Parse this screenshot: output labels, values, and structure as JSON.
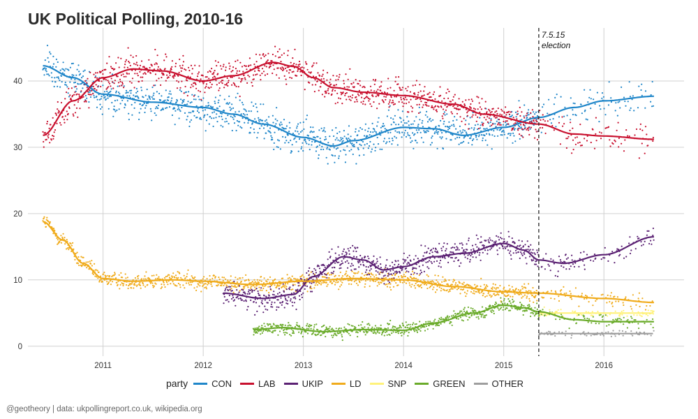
{
  "title": "UK Political Polling, 2010-16",
  "caption": "@geotheory | data: ukpollingreport.co.uk, wikipedia.org",
  "legend": {
    "title": "party",
    "items": [
      {
        "label": "CON",
        "color": "#1f86c9"
      },
      {
        "label": "LAB",
        "color": "#c8102e"
      },
      {
        "label": "UKIP",
        "color": "#5b2173"
      },
      {
        "label": "LD",
        "color": "#f0ab1b"
      },
      {
        "label": "SNP",
        "color": "#fff27a"
      },
      {
        "label": "GREEN",
        "color": "#6aab2a"
      },
      {
        "label": "OTHER",
        "color": "#9e9e9e"
      }
    ]
  },
  "chart_data": {
    "type": "scatter",
    "xlim": [
      2010.25,
      2016.8
    ],
    "ylim": [
      -1.5,
      48
    ],
    "xticks": [
      2011,
      2012,
      2013,
      2014,
      2015,
      2016
    ],
    "xtick_labels": [
      "2011",
      "2012",
      "2013",
      "2014",
      "2015",
      "2016"
    ],
    "yticks": [
      0,
      10,
      20,
      30,
      40
    ],
    "ytick_labels": [
      "0",
      "10",
      "20",
      "30",
      "40"
    ],
    "grid": true,
    "legend_position": "bottom",
    "annotation": {
      "x": 2015.35,
      "lines": [
        "7.5.15",
        "election"
      ]
    },
    "series": [
      {
        "name": "CON",
        "color": "#1f86c9",
        "start": 2010.4,
        "end": 2016.5,
        "noise": 2.2,
        "trend": [
          [
            2010.4,
            42.3
          ],
          [
            2010.7,
            40.5
          ],
          [
            2011.0,
            38.0
          ],
          [
            2011.5,
            36.8
          ],
          [
            2012.0,
            36.0
          ],
          [
            2012.3,
            35.0
          ],
          [
            2012.6,
            33.5
          ],
          [
            2013.0,
            31.5
          ],
          [
            2013.3,
            30.2
          ],
          [
            2013.5,
            31.0
          ],
          [
            2014.0,
            33.0
          ],
          [
            2014.3,
            32.8
          ],
          [
            2014.6,
            31.8
          ],
          [
            2015.0,
            33.0
          ],
          [
            2015.35,
            34.5
          ],
          [
            2015.7,
            36.0
          ],
          [
            2016.0,
            37.0
          ],
          [
            2016.5,
            37.7
          ]
        ]
      },
      {
        "name": "LAB",
        "color": "#c8102e",
        "start": 2010.4,
        "end": 2016.5,
        "noise": 2.0,
        "trend": [
          [
            2010.4,
            31.8
          ],
          [
            2010.7,
            37.0
          ],
          [
            2011.0,
            40.5
          ],
          [
            2011.3,
            41.8
          ],
          [
            2011.6,
            41.5
          ],
          [
            2012.0,
            40.0
          ],
          [
            2012.3,
            40.8
          ],
          [
            2012.7,
            42.8
          ],
          [
            2012.9,
            42.2
          ],
          [
            2013.1,
            40.5
          ],
          [
            2013.3,
            39.0
          ],
          [
            2013.6,
            38.3
          ],
          [
            2014.0,
            37.8
          ],
          [
            2014.5,
            36.5
          ],
          [
            2014.8,
            35.0
          ],
          [
            2015.35,
            33.5
          ],
          [
            2015.7,
            32.0
          ],
          [
            2016.0,
            31.7
          ],
          [
            2016.5,
            31.2
          ]
        ]
      },
      {
        "name": "UKIP",
        "color": "#5b2173",
        "start": 2012.2,
        "end": 2016.5,
        "noise": 1.5,
        "trend": [
          [
            2012.2,
            8.0
          ],
          [
            2012.6,
            7.2
          ],
          [
            2012.9,
            7.8
          ],
          [
            2013.1,
            10.5
          ],
          [
            2013.4,
            13.5
          ],
          [
            2013.6,
            13.0
          ],
          [
            2013.8,
            11.5
          ],
          [
            2014.0,
            12.0
          ],
          [
            2014.3,
            13.5
          ],
          [
            2014.6,
            14.0
          ],
          [
            2015.0,
            15.5
          ],
          [
            2015.2,
            14.5
          ],
          [
            2015.35,
            13.0
          ],
          [
            2015.6,
            12.5
          ],
          [
            2016.0,
            13.8
          ],
          [
            2016.5,
            16.5
          ]
        ]
      },
      {
        "name": "LD",
        "color": "#f0ab1b",
        "start": 2010.4,
        "end": 2016.5,
        "noise": 1.0,
        "trend": [
          [
            2010.4,
            18.8
          ],
          [
            2010.6,
            16.0
          ],
          [
            2010.8,
            12.5
          ],
          [
            2011.0,
            10.2
          ],
          [
            2011.3,
            9.8
          ],
          [
            2011.7,
            10.0
          ],
          [
            2012.0,
            9.8
          ],
          [
            2012.5,
            9.3
          ],
          [
            2013.0,
            9.8
          ],
          [
            2013.5,
            10.2
          ],
          [
            2014.0,
            10.0
          ],
          [
            2014.5,
            9.0
          ],
          [
            2015.0,
            8.2
          ],
          [
            2015.35,
            8.0
          ],
          [
            2016.0,
            7.2
          ],
          [
            2016.5,
            6.6
          ]
        ]
      },
      {
        "name": "SNP",
        "color": "#fff27a",
        "start": 2015.35,
        "end": 2016.5,
        "noise": 0.5,
        "trend": [
          [
            2015.35,
            5.0
          ],
          [
            2016.5,
            5.0
          ]
        ]
      },
      {
        "name": "GREEN",
        "color": "#6aab2a",
        "start": 2012.5,
        "end": 2016.5,
        "noise": 0.8,
        "trend": [
          [
            2012.5,
            2.5
          ],
          [
            2012.8,
            2.8
          ],
          [
            2013.2,
            2.2
          ],
          [
            2013.6,
            2.5
          ],
          [
            2014.0,
            2.4
          ],
          [
            2014.3,
            3.5
          ],
          [
            2014.7,
            5.0
          ],
          [
            2015.0,
            6.2
          ],
          [
            2015.2,
            5.8
          ],
          [
            2015.35,
            5.2
          ],
          [
            2015.7,
            4.0
          ],
          [
            2016.0,
            3.7
          ],
          [
            2016.5,
            3.7
          ]
        ]
      },
      {
        "name": "OTHER",
        "color": "#9e9e9e",
        "start": 2015.35,
        "end": 2016.5,
        "noise": 0.4,
        "trend": [
          [
            2015.35,
            1.9
          ],
          [
            2016.5,
            1.9
          ]
        ]
      }
    ]
  }
}
